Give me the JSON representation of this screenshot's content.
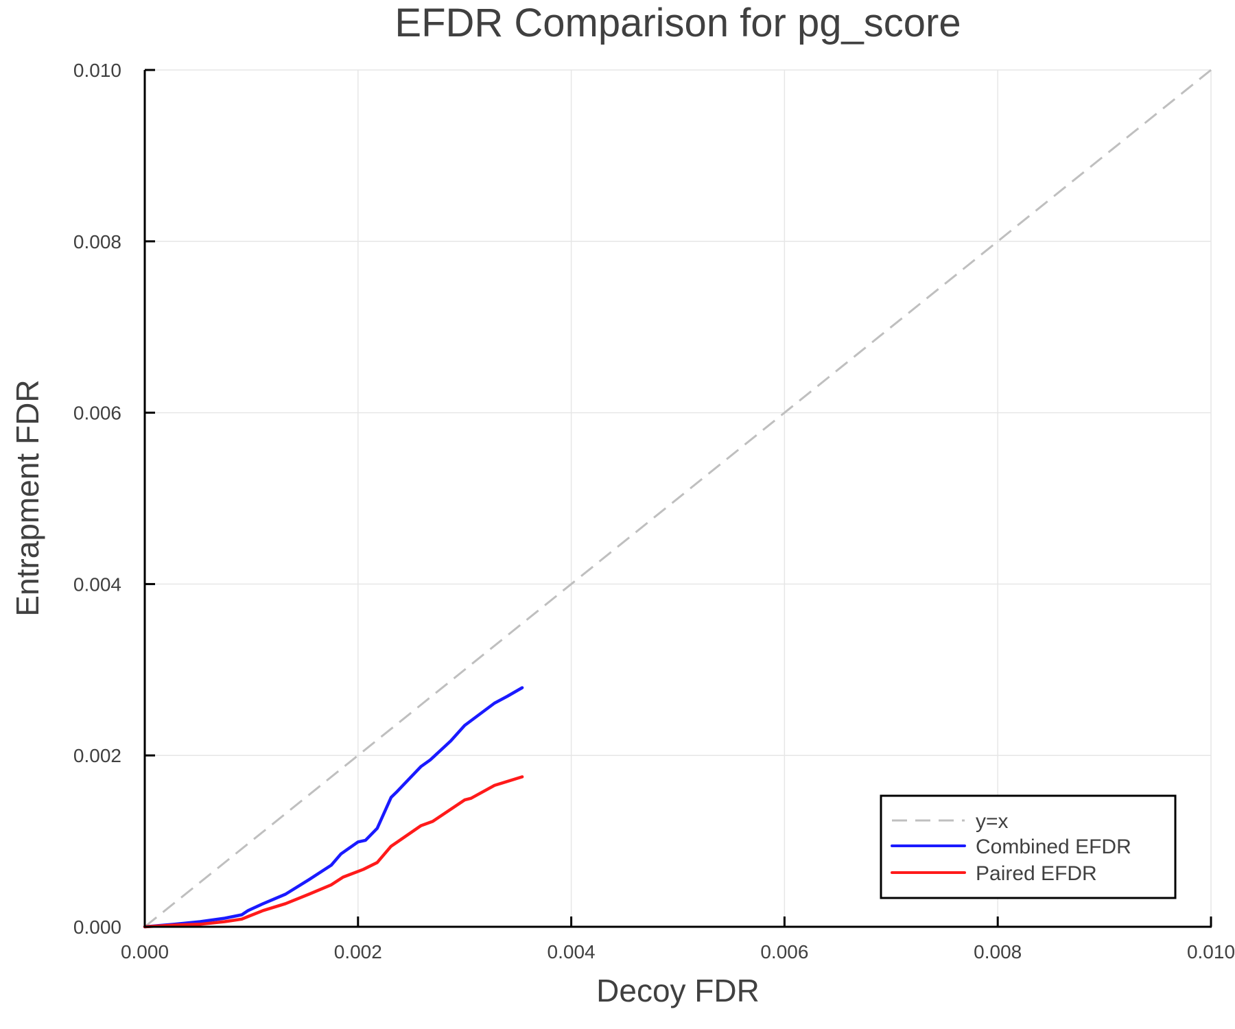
{
  "chart_data": {
    "type": "line",
    "title": "EFDR Comparison for pg_score",
    "xlabel": "Decoy FDR",
    "ylabel": "Entrapment FDR",
    "xlim": [
      0.0,
      0.01
    ],
    "ylim": [
      0.0,
      0.01
    ],
    "xticks": [
      "0.000",
      "0.002",
      "0.004",
      "0.006",
      "0.008",
      "0.010"
    ],
    "yticks": [
      "0.000",
      "0.002",
      "0.004",
      "0.006",
      "0.008",
      "0.010"
    ],
    "grid": true,
    "legend_position": "lower right",
    "series": [
      {
        "name": "y=x",
        "color": "#bfbfbf",
        "style": "dashed",
        "x": [
          0.0,
          0.01
        ],
        "y": [
          0.0,
          0.01
        ]
      },
      {
        "name": "Combined EFDR",
        "color": "#1a1aff",
        "style": "solid",
        "x": [
          0.0,
          0.00028,
          0.00052,
          0.00075,
          0.00091,
          0.00097,
          0.00111,
          0.00132,
          0.00154,
          0.00175,
          0.00184,
          0.002,
          0.00207,
          0.00218,
          0.00231,
          0.00236,
          0.00259,
          0.00268,
          0.00287,
          0.003,
          0.00328,
          0.0034,
          0.00354
        ],
        "y": [
          0.0,
          3e-05,
          6e-05,
          0.0001,
          0.00014,
          0.00019,
          0.00027,
          0.00038,
          0.00055,
          0.00072,
          0.00085,
          0.00099,
          0.00101,
          0.00115,
          0.00151,
          0.00157,
          0.00187,
          0.00195,
          0.00217,
          0.00235,
          0.00261,
          0.00269,
          0.00279
        ]
      },
      {
        "name": "Paired EFDR",
        "color": "#ff1a1a",
        "style": "solid",
        "x": [
          0.0,
          0.00028,
          0.00052,
          0.00075,
          0.00091,
          0.00097,
          0.00111,
          0.00132,
          0.00154,
          0.00175,
          0.00186,
          0.00205,
          0.00218,
          0.00231,
          0.00237,
          0.00259,
          0.0027,
          0.003,
          0.00306,
          0.00328,
          0.00354
        ],
        "y": [
          0.0,
          2e-05,
          3e-05,
          6e-05,
          9e-05,
          0.00012,
          0.00019,
          0.00027,
          0.00038,
          0.00049,
          0.00058,
          0.00067,
          0.00075,
          0.00094,
          0.00099,
          0.00118,
          0.00123,
          0.00148,
          0.0015,
          0.00165,
          0.00175
        ]
      }
    ]
  }
}
